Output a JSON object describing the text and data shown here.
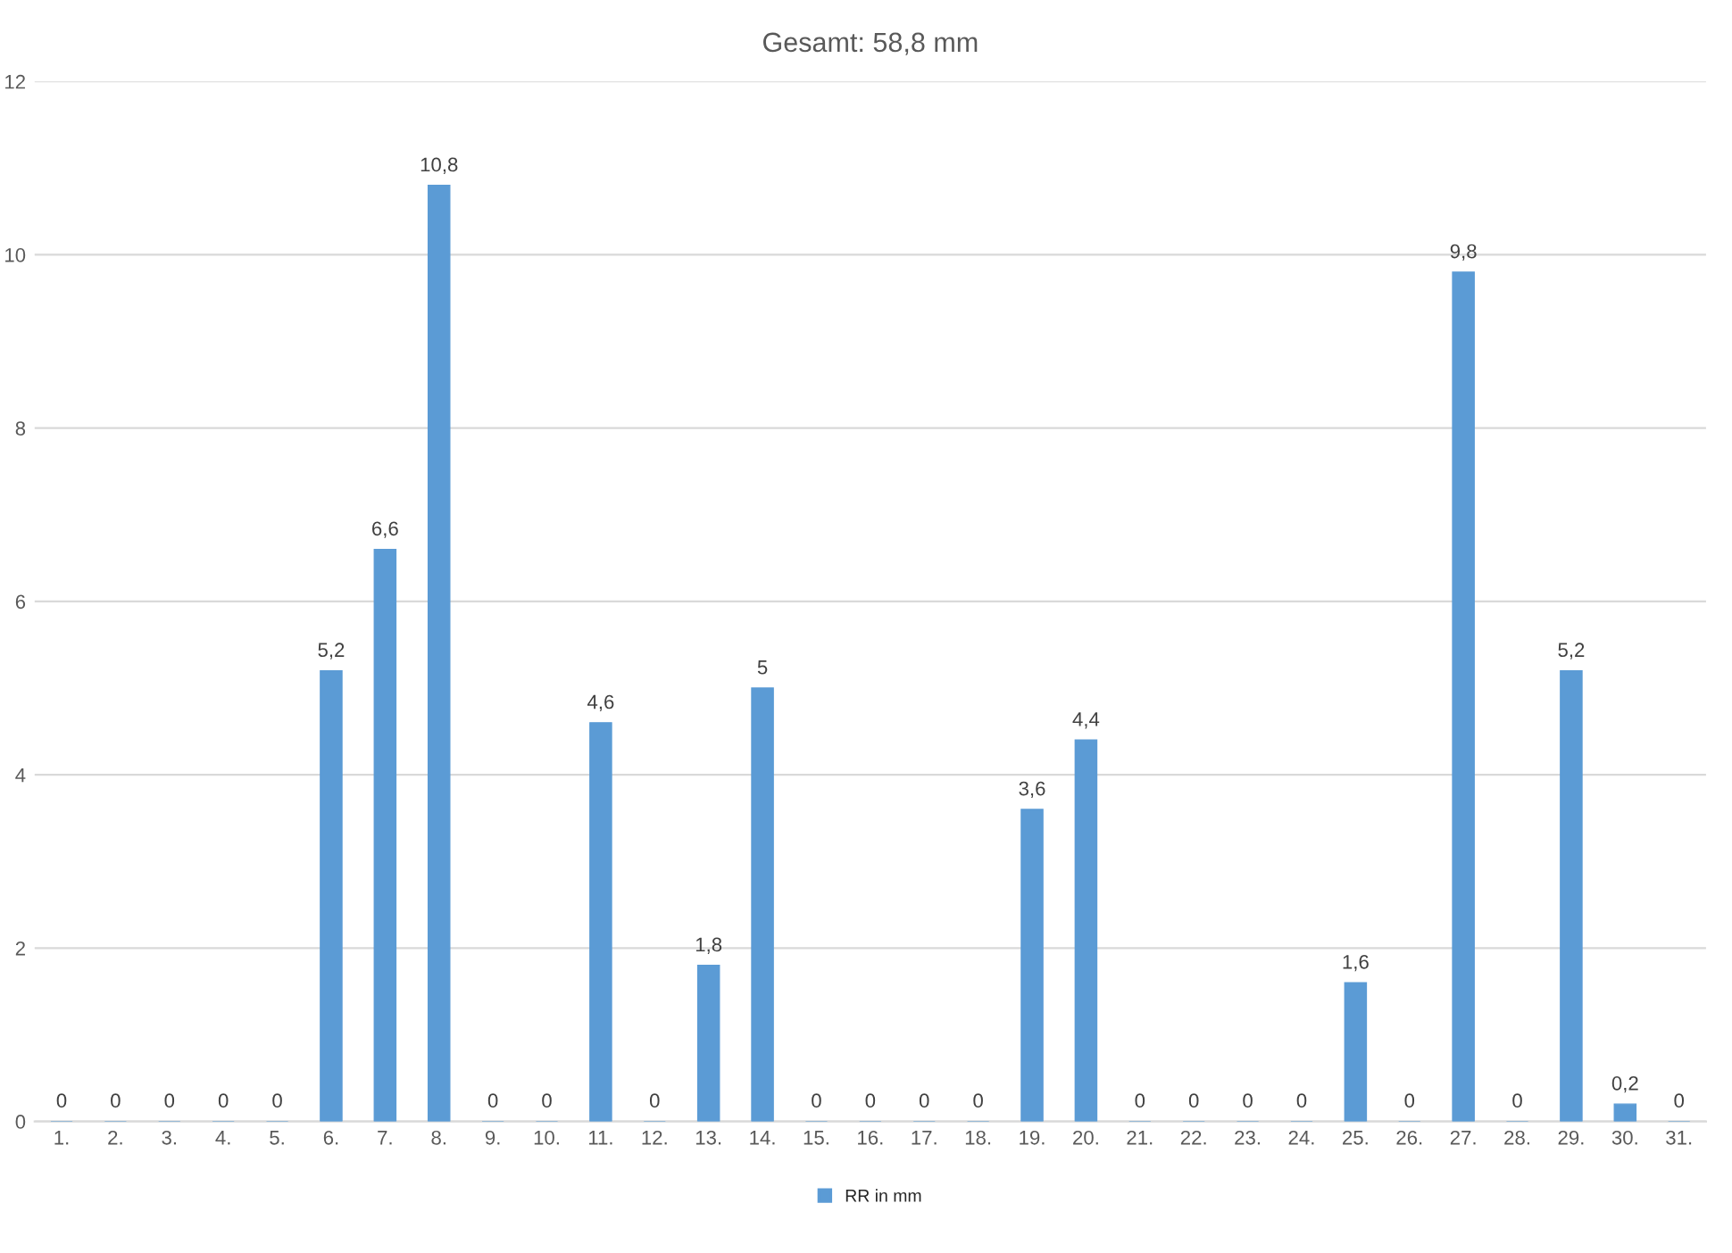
{
  "chart_data": {
    "type": "bar",
    "title": "Gesamt: 58,8 mm",
    "categories": [
      "1.",
      "2.",
      "3.",
      "4.",
      "5.",
      "6.",
      "7.",
      "8.",
      "9.",
      "10.",
      "11.",
      "12.",
      "13.",
      "14.",
      "15.",
      "16.",
      "17.",
      "18.",
      "19.",
      "20.",
      "21.",
      "22.",
      "23.",
      "24.",
      "25.",
      "26.",
      "27.",
      "28.",
      "29.",
      "30.",
      "31."
    ],
    "series": [
      {
        "name": "RR in mm",
        "color": "#5b9bd5",
        "values": [
          0,
          0,
          0,
          0,
          0,
          5.2,
          6.6,
          10.8,
          0,
          0,
          4.6,
          0,
          1.8,
          5,
          0,
          0,
          0,
          0,
          3.6,
          4.4,
          0,
          0,
          0,
          0,
          1.6,
          0,
          9.8,
          0,
          5.2,
          0.2,
          0
        ],
        "value_labels": [
          "0",
          "0",
          "0",
          "0",
          "0",
          "5,2",
          "6,6",
          "10,8",
          "0",
          "0",
          "4,6",
          "0",
          "1,8",
          "5",
          "0",
          "0",
          "0",
          "0",
          "3,6",
          "4,4",
          "0",
          "0",
          "0",
          "0",
          "1,6",
          "0",
          "9,8",
          "0",
          "5,2",
          "0,2",
          "0"
        ]
      }
    ],
    "ylim": [
      0,
      12
    ],
    "yticks": [
      0,
      2,
      4,
      6,
      8,
      10,
      12
    ],
    "grid": "y",
    "legend": "bottom"
  }
}
